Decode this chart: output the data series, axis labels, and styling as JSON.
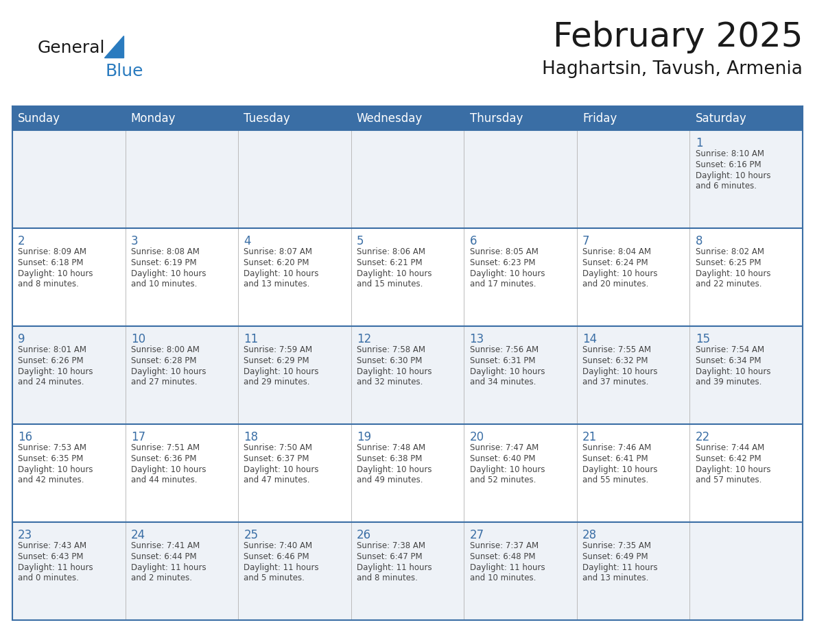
{
  "title": "February 2025",
  "subtitle": "Haghartsin, Tavush, Armenia",
  "days_of_week": [
    "Sunday",
    "Monday",
    "Tuesday",
    "Wednesday",
    "Thursday",
    "Friday",
    "Saturday"
  ],
  "header_bg": "#3a6ea5",
  "header_text": "#ffffff",
  "row0_bg": "#eef2f7",
  "row1_bg": "#ffffff",
  "grid_line_color": "#3a6ea5",
  "day_number_color": "#3a6ea5",
  "text_color": "#444444",
  "logo_general_color": "#1a1a1a",
  "logo_blue_color": "#2a7bbf",
  "calendar": [
    [
      null,
      null,
      null,
      null,
      null,
      null,
      {
        "day": 1,
        "sunrise": "8:10 AM",
        "sunset": "6:16 PM",
        "daylight_hours": 10,
        "daylight_minutes": 6
      }
    ],
    [
      {
        "day": 2,
        "sunrise": "8:09 AM",
        "sunset": "6:18 PM",
        "daylight_hours": 10,
        "daylight_minutes": 8
      },
      {
        "day": 3,
        "sunrise": "8:08 AM",
        "sunset": "6:19 PM",
        "daylight_hours": 10,
        "daylight_minutes": 10
      },
      {
        "day": 4,
        "sunrise": "8:07 AM",
        "sunset": "6:20 PM",
        "daylight_hours": 10,
        "daylight_minutes": 13
      },
      {
        "day": 5,
        "sunrise": "8:06 AM",
        "sunset": "6:21 PM",
        "daylight_hours": 10,
        "daylight_minutes": 15
      },
      {
        "day": 6,
        "sunrise": "8:05 AM",
        "sunset": "6:23 PM",
        "daylight_hours": 10,
        "daylight_minutes": 17
      },
      {
        "day": 7,
        "sunrise": "8:04 AM",
        "sunset": "6:24 PM",
        "daylight_hours": 10,
        "daylight_minutes": 20
      },
      {
        "day": 8,
        "sunrise": "8:02 AM",
        "sunset": "6:25 PM",
        "daylight_hours": 10,
        "daylight_minutes": 22
      }
    ],
    [
      {
        "day": 9,
        "sunrise": "8:01 AM",
        "sunset": "6:26 PM",
        "daylight_hours": 10,
        "daylight_minutes": 24
      },
      {
        "day": 10,
        "sunrise": "8:00 AM",
        "sunset": "6:28 PM",
        "daylight_hours": 10,
        "daylight_minutes": 27
      },
      {
        "day": 11,
        "sunrise": "7:59 AM",
        "sunset": "6:29 PM",
        "daylight_hours": 10,
        "daylight_minutes": 29
      },
      {
        "day": 12,
        "sunrise": "7:58 AM",
        "sunset": "6:30 PM",
        "daylight_hours": 10,
        "daylight_minutes": 32
      },
      {
        "day": 13,
        "sunrise": "7:56 AM",
        "sunset": "6:31 PM",
        "daylight_hours": 10,
        "daylight_minutes": 34
      },
      {
        "day": 14,
        "sunrise": "7:55 AM",
        "sunset": "6:32 PM",
        "daylight_hours": 10,
        "daylight_minutes": 37
      },
      {
        "day": 15,
        "sunrise": "7:54 AM",
        "sunset": "6:34 PM",
        "daylight_hours": 10,
        "daylight_minutes": 39
      }
    ],
    [
      {
        "day": 16,
        "sunrise": "7:53 AM",
        "sunset": "6:35 PM",
        "daylight_hours": 10,
        "daylight_minutes": 42
      },
      {
        "day": 17,
        "sunrise": "7:51 AM",
        "sunset": "6:36 PM",
        "daylight_hours": 10,
        "daylight_minutes": 44
      },
      {
        "day": 18,
        "sunrise": "7:50 AM",
        "sunset": "6:37 PM",
        "daylight_hours": 10,
        "daylight_minutes": 47
      },
      {
        "day": 19,
        "sunrise": "7:48 AM",
        "sunset": "6:38 PM",
        "daylight_hours": 10,
        "daylight_minutes": 49
      },
      {
        "day": 20,
        "sunrise": "7:47 AM",
        "sunset": "6:40 PM",
        "daylight_hours": 10,
        "daylight_minutes": 52
      },
      {
        "day": 21,
        "sunrise": "7:46 AM",
        "sunset": "6:41 PM",
        "daylight_hours": 10,
        "daylight_minutes": 55
      },
      {
        "day": 22,
        "sunrise": "7:44 AM",
        "sunset": "6:42 PM",
        "daylight_hours": 10,
        "daylight_minutes": 57
      }
    ],
    [
      {
        "day": 23,
        "sunrise": "7:43 AM",
        "sunset": "6:43 PM",
        "daylight_hours": 11,
        "daylight_minutes": 0
      },
      {
        "day": 24,
        "sunrise": "7:41 AM",
        "sunset": "6:44 PM",
        "daylight_hours": 11,
        "daylight_minutes": 2
      },
      {
        "day": 25,
        "sunrise": "7:40 AM",
        "sunset": "6:46 PM",
        "daylight_hours": 11,
        "daylight_minutes": 5
      },
      {
        "day": 26,
        "sunrise": "7:38 AM",
        "sunset": "6:47 PM",
        "daylight_hours": 11,
        "daylight_minutes": 8
      },
      {
        "day": 27,
        "sunrise": "7:37 AM",
        "sunset": "6:48 PM",
        "daylight_hours": 11,
        "daylight_minutes": 10
      },
      {
        "day": 28,
        "sunrise": "7:35 AM",
        "sunset": "6:49 PM",
        "daylight_hours": 11,
        "daylight_minutes": 13
      },
      null
    ]
  ]
}
